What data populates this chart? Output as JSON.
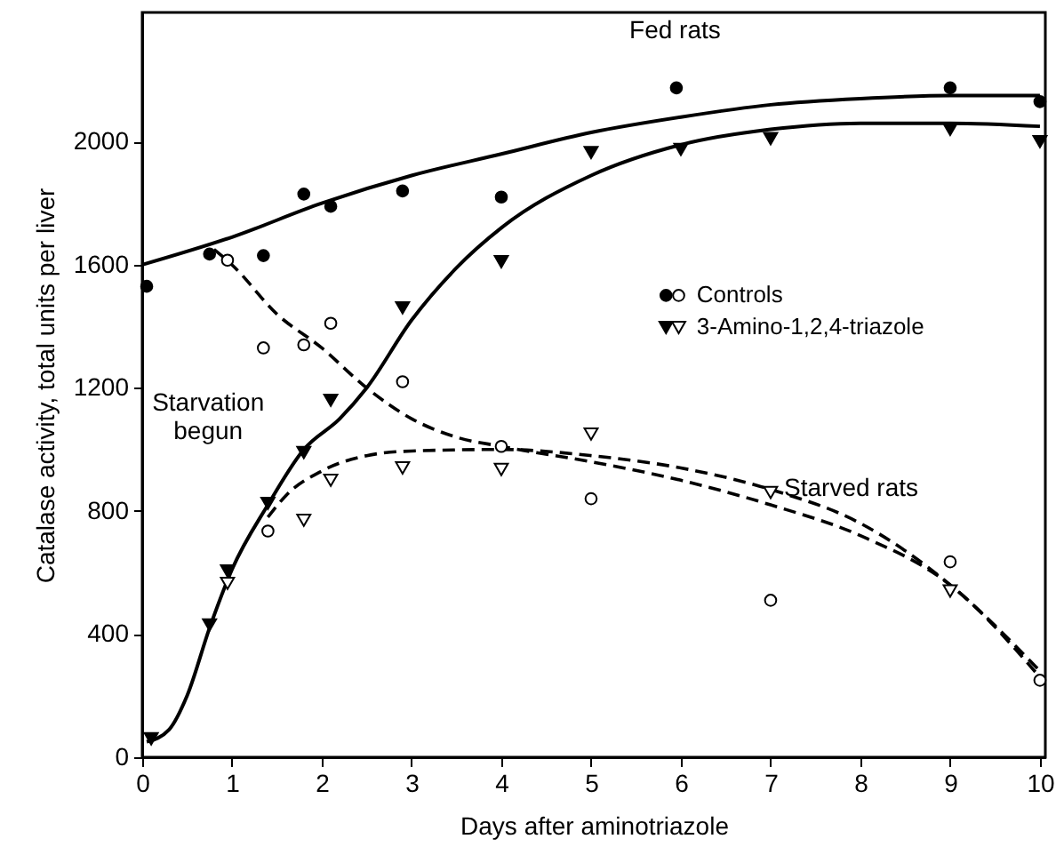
{
  "chart_data": {
    "type": "scatter",
    "xlabel": "Days after aminotriazole",
    "ylabel": "Catalase activity, total units per liver",
    "xlim": [
      0,
      10.06
    ],
    "ylim": [
      0,
      2420
    ],
    "xticks": [
      0,
      1,
      2,
      3,
      4,
      5,
      6,
      7,
      8,
      9,
      10
    ],
    "yticks": [
      0,
      400,
      800,
      1200,
      1600,
      2000
    ],
    "grid": false,
    "legend": "right",
    "series": [
      {
        "name": "Controls",
        "marker": "circle",
        "color": "#000000",
        "x": [
          0.05,
          0.75,
          1.35,
          1.8,
          2.1,
          2.9,
          4.0,
          5.95,
          9.0,
          10.0
        ],
        "values": [
          1530,
          1635,
          1630,
          1830,
          1790,
          1840,
          1820,
          2175,
          2175,
          2130
        ]
      },
      {
        "marker": "circle",
        "color": "#ffffff",
        "x": [
          0.95,
          1.35,
          1.8,
          2.1,
          2.9,
          1.4,
          4.0,
          5.0,
          7.0,
          9.0,
          10.0
        ],
        "values": [
          1615,
          1330,
          1340,
          1410,
          1220,
          735,
          1010,
          840,
          510,
          635,
          250
        ]
      },
      {
        "name": "3-Amino-1,2,4-triazole",
        "marker": "triangle",
        "color": "#000000",
        "x": [
          0.1,
          0.75,
          0.95,
          1.4,
          1.8,
          2.1,
          2.9,
          4.0,
          5.0,
          6.0,
          7.0,
          9.0,
          10.0
        ],
        "values": [
          60,
          430,
          605,
          825,
          990,
          1160,
          1460,
          1610,
          1965,
          1975,
          2010,
          2040,
          2000
        ]
      },
      {
        "marker": "triangle",
        "color": "#ffffff",
        "x": [
          0.95,
          1.8,
          2.1,
          2.9,
          4.0,
          5.0,
          7.0,
          9.0
        ],
        "values": [
          565,
          770,
          900,
          940,
          935,
          1050,
          860,
          540
        ]
      },
      {
        "type": "line",
        "line_style": "solid",
        "color": "#000000",
        "x": [
          0,
          1,
          2,
          3,
          4,
          5,
          6,
          7,
          8,
          9,
          10
        ],
        "values": [
          1600,
          1690,
          1800,
          1890,
          1960,
          2030,
          2080,
          2120,
          2140,
          2150,
          2150
        ]
      },
      {
        "type": "line",
        "line_style": "solid",
        "color": "#000000",
        "x": [
          0.05,
          0.3,
          0.5,
          0.75,
          1,
          1.4,
          1.8,
          2.2,
          2.5,
          3,
          3.5,
          4,
          5,
          6,
          7,
          8,
          9,
          10
        ],
        "values": [
          50,
          90,
          200,
          420,
          610,
          820,
          1000,
          1100,
          1200,
          1420,
          1590,
          1720,
          1890,
          1990,
          2040,
          2060,
          2060,
          2050
        ]
      },
      {
        "type": "line",
        "line_style": "dashed",
        "color": "#000000",
        "x": [
          0.8,
          1,
          1.5,
          2,
          2.5,
          3,
          3.5,
          4,
          5,
          6,
          7,
          8,
          9,
          10
        ],
        "values": [
          1650,
          1600,
          1440,
          1330,
          1200,
          1100,
          1040,
          1010,
          960,
          900,
          820,
          720,
          560,
          260
        ]
      },
      {
        "type": "line",
        "line_style": "dashed",
        "color": "#000000",
        "x": [
          1.4,
          1.6,
          2,
          2.5,
          3,
          4,
          5,
          6,
          7,
          8,
          9,
          10
        ],
        "values": [
          780,
          850,
          930,
          980,
          995,
          1000,
          980,
          940,
          870,
          760,
          560,
          280
        ]
      }
    ],
    "annotations": [
      "Fed rats",
      "Starved rats",
      "Starvation\nbegun"
    ]
  }
}
